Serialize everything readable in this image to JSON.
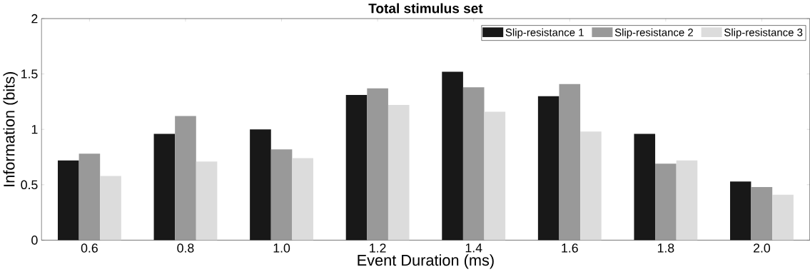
{
  "chart_data": {
    "type": "bar",
    "title": "Total stimulus set",
    "xlabel": "Event Duration (ms)",
    "ylabel": "Information (bits)",
    "categories": [
      "0.6",
      "0.8",
      "1.0",
      "1.2",
      "1.4",
      "1.6",
      "1.8",
      "2.0"
    ],
    "series": [
      {
        "name": "Slip-resistance 1",
        "color": "#181818",
        "values": [
          0.72,
          0.96,
          1.0,
          1.31,
          1.52,
          1.3,
          0.96,
          0.53
        ]
      },
      {
        "name": "Slip-resistance 2",
        "color": "#999999",
        "values": [
          0.78,
          1.12,
          0.82,
          1.37,
          1.38,
          1.41,
          0.69,
          0.48
        ]
      },
      {
        "name": "Slip-resistance 3",
        "color": "#dcdcdc",
        "values": [
          0.58,
          0.71,
          0.74,
          1.22,
          1.16,
          0.98,
          0.72,
          0.41
        ]
      }
    ],
    "ylim": [
      0,
      2
    ],
    "yticks": [
      0,
      0.5,
      1,
      1.5,
      2
    ],
    "legend": "top right",
    "grid": false
  }
}
